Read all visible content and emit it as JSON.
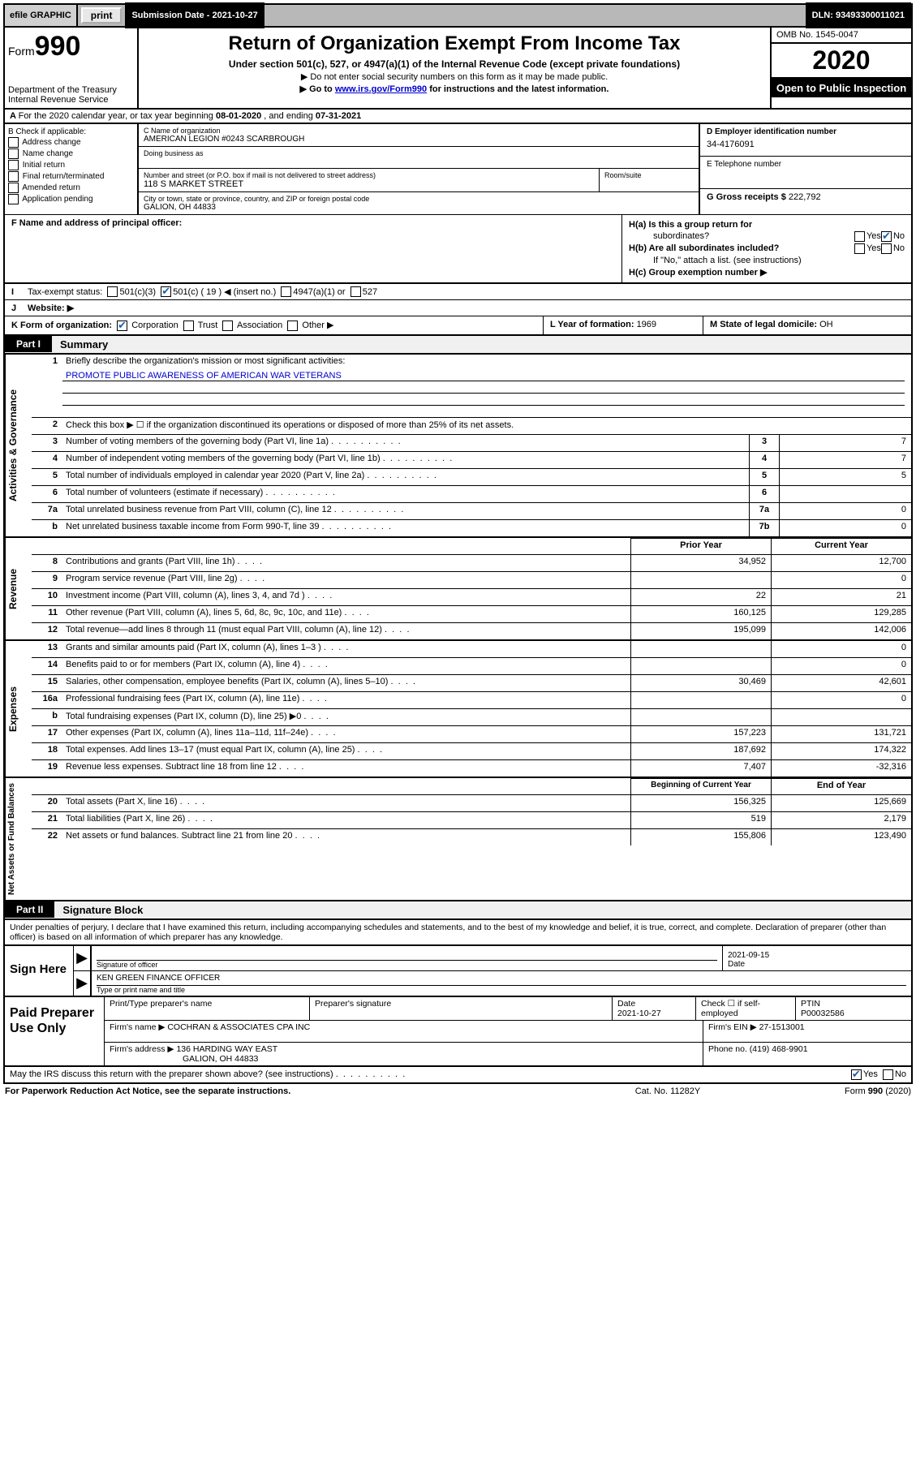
{
  "topbar": {
    "efile": "efile GRAPHIC",
    "print": "print",
    "submission": "Submission Date - 2021-10-27",
    "dln": "DLN: 93493300011021"
  },
  "header": {
    "form_word": "Form",
    "form_num": "990",
    "title": "Return of Organization Exempt From Income Tax",
    "subtitle": "Under section 501(c), 527, or 4947(a)(1) of the Internal Revenue Code (except private foundations)",
    "note1": "▶ Do not enter social security numbers on this form as it may be made public.",
    "note2_pre": "▶ Go to ",
    "note2_link": "www.irs.gov/Form990",
    "note2_post": " for instructions and the latest information.",
    "dept": "Department of the Treasury\nInternal Revenue Service",
    "omb": "OMB No. 1545-0047",
    "year": "2020",
    "inspect": "Open to Public Inspection"
  },
  "rowA": {
    "text_pre": "For the 2020 calendar year, or tax year beginning ",
    "begin": "08-01-2020",
    "mid": " , and ending ",
    "end": "07-31-2021"
  },
  "colB": {
    "header": "B Check if applicable:",
    "items": [
      "Address change",
      "Name change",
      "Initial return",
      "Final return/terminated",
      "Amended return",
      "Application pending"
    ]
  },
  "colC": {
    "name_label": "C Name of organization",
    "name": "AMERICAN LEGION #0243 SCARBROUGH",
    "dba_label": "Doing business as",
    "addr_label": "Number and street (or P.O. box if mail is not delivered to street address)",
    "addr": "118 S MARKET STREET",
    "room_label": "Room/suite",
    "city_label": "City or town, state or province, country, and ZIP or foreign postal code",
    "city": "GALION, OH  44833"
  },
  "colD": {
    "ein_label": "D Employer identification number",
    "ein": "34-4176091",
    "phone_label": "E Telephone number",
    "gross_label": "G Gross receipts $ ",
    "gross": "222,792"
  },
  "rowF": {
    "label": "F  Name and address of principal officer:"
  },
  "rowH": {
    "ha": "H(a)  Is this a group return for",
    "ha2": "subordinates?",
    "hb": "H(b)  Are all subordinates included?",
    "hb_note": "If \"No,\" attach a list. (see instructions)",
    "hc": "H(c)  Group exemption number ▶"
  },
  "rowI": {
    "label": "Tax-exempt status:",
    "o1": "501(c)(3)",
    "o2": "501(c) ( 19 ) ◀ (insert no.)",
    "o3": "4947(a)(1) or",
    "o4": "527"
  },
  "rowJ": {
    "label": "Website: ▶"
  },
  "rowK": {
    "k1_label": "K Form of organization:",
    "k1_opts": [
      "Corporation",
      "Trust",
      "Association",
      "Other ▶"
    ],
    "k2_label": "L Year of formation: ",
    "k2_val": "1969",
    "k3_label": "M State of legal domicile: ",
    "k3_val": "OH"
  },
  "part1": {
    "tag": "Part I",
    "title": "Summary"
  },
  "sections": {
    "gov_tab": "Activities & Governance",
    "rev_tab": "Revenue",
    "exp_tab": "Expenses",
    "net_tab": "Net Assets or Fund Balances"
  },
  "gov": {
    "l1": "Briefly describe the organization's mission or most significant activities:",
    "mission": "PROMOTE PUBLIC AWARENESS OF AMERICAN WAR VETERANS",
    "l2": "Check this box ▶ ☐  if the organization discontinued its operations or disposed of more than 25% of its net assets.",
    "items": [
      {
        "n": "3",
        "t": "Number of voting members of the governing body (Part VI, line 1a)",
        "b": "3",
        "v": "7"
      },
      {
        "n": "4",
        "t": "Number of independent voting members of the governing body (Part VI, line 1b)",
        "b": "4",
        "v": "7"
      },
      {
        "n": "5",
        "t": "Total number of individuals employed in calendar year 2020 (Part V, line 2a)",
        "b": "5",
        "v": "5"
      },
      {
        "n": "6",
        "t": "Total number of volunteers (estimate if necessary)",
        "b": "6",
        "v": ""
      },
      {
        "n": "7a",
        "t": "Total unrelated business revenue from Part VIII, column (C), line 12",
        "b": "7a",
        "v": "0"
      },
      {
        "n": "b",
        "t": "Net unrelated business taxable income from Form 990-T, line 39",
        "b": "7b",
        "v": "0"
      }
    ]
  },
  "two_col_hdr": {
    "py": "Prior Year",
    "cy": "Current Year"
  },
  "rev": [
    {
      "n": "8",
      "t": "Contributions and grants (Part VIII, line 1h)",
      "p": "34,952",
      "c": "12,700"
    },
    {
      "n": "9",
      "t": "Program service revenue (Part VIII, line 2g)",
      "p": "",
      "c": "0"
    },
    {
      "n": "10",
      "t": "Investment income (Part VIII, column (A), lines 3, 4, and 7d )",
      "p": "22",
      "c": "21"
    },
    {
      "n": "11",
      "t": "Other revenue (Part VIII, column (A), lines 5, 6d, 8c, 9c, 10c, and 11e)",
      "p": "160,125",
      "c": "129,285"
    },
    {
      "n": "12",
      "t": "Total revenue—add lines 8 through 11 (must equal Part VIII, column (A), line 12)",
      "p": "195,099",
      "c": "142,006"
    }
  ],
  "exp": [
    {
      "n": "13",
      "t": "Grants and similar amounts paid (Part IX, column (A), lines 1–3 )",
      "p": "",
      "c": "0"
    },
    {
      "n": "14",
      "t": "Benefits paid to or for members (Part IX, column (A), line 4)",
      "p": "",
      "c": "0"
    },
    {
      "n": "15",
      "t": "Salaries, other compensation, employee benefits (Part IX, column (A), lines 5–10)",
      "p": "30,469",
      "c": "42,601"
    },
    {
      "n": "16a",
      "t": "Professional fundraising fees (Part IX, column (A), line 11e)",
      "p": "",
      "c": "0"
    },
    {
      "n": "b",
      "t": "Total fundraising expenses (Part IX, column (D), line 25) ▶0",
      "p": "grey",
      "c": "grey"
    },
    {
      "n": "17",
      "t": "Other expenses (Part IX, column (A), lines 11a–11d, 11f–24e)",
      "p": "157,223",
      "c": "131,721"
    },
    {
      "n": "18",
      "t": "Total expenses. Add lines 13–17 (must equal Part IX, column (A), line 25)",
      "p": "187,692",
      "c": "174,322"
    },
    {
      "n": "19",
      "t": "Revenue less expenses. Subtract line 18 from line 12",
      "p": "7,407",
      "c": "-32,316"
    }
  ],
  "net_hdr": {
    "py": "Beginning of Current Year",
    "cy": "End of Year"
  },
  "net": [
    {
      "n": "20",
      "t": "Total assets (Part X, line 16)",
      "p": "156,325",
      "c": "125,669"
    },
    {
      "n": "21",
      "t": "Total liabilities (Part X, line 26)",
      "p": "519",
      "c": "2,179"
    },
    {
      "n": "22",
      "t": "Net assets or fund balances. Subtract line 21 from line 20",
      "p": "155,806",
      "c": "123,490"
    }
  ],
  "part2": {
    "tag": "Part II",
    "title": "Signature Block"
  },
  "sig_text": "Under penalties of perjury, I declare that I have examined this return, including accompanying schedules and statements, and to the best of my knowledge and belief, it is true, correct, and complete. Declaration of preparer (other than officer) is based on all information of which preparer has any knowledge.",
  "sign": {
    "left": "Sign Here",
    "sig_label": "Signature of officer",
    "date_label": "Date",
    "date": "2021-09-15",
    "name": "KEN GREEN  FINANCE OFFICER",
    "name_label": "Type or print name and title"
  },
  "prep": {
    "left": "Paid Preparer Use Only",
    "h1": "Print/Type preparer's name",
    "h2": "Preparer's signature",
    "h3_l": "Date",
    "h3": "2021-10-27",
    "h4": "Check ☐ if self-employed",
    "h5_l": "PTIN",
    "h5": "P00032586",
    "firm_l": "Firm's name    ▶",
    "firm": "COCHRAN & ASSOCIATES CPA INC",
    "ein_l": "Firm's EIN ▶",
    "ein": "27-1513001",
    "addr_l": "Firm's address ▶",
    "addr1": "136 HARDING WAY EAST",
    "addr2": "GALION, OH  44833",
    "phone_l": "Phone no. ",
    "phone": "(419) 468-9901"
  },
  "irs_discuss": "May the IRS discuss this return with the preparer shown above? (see instructions)",
  "footer": {
    "l": "For Paperwork Reduction Act Notice, see the separate instructions.",
    "c": "Cat. No. 11282Y",
    "r": "Form 990 (2020)"
  }
}
